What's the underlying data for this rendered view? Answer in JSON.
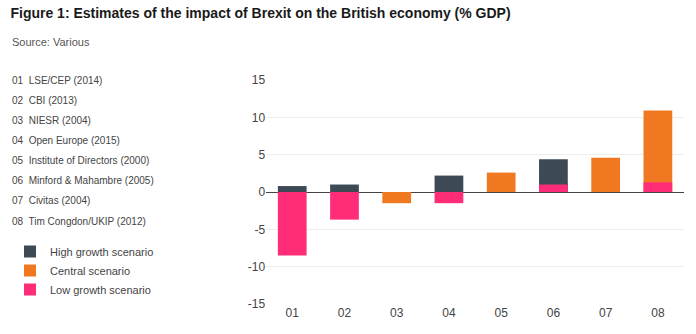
{
  "chart_data": {
    "type": "bar",
    "title": "Figure 1: Estimates of the impact of Brexit on the British economy (% GDP)",
    "subtitle": "Source: Various",
    "categories": [
      "01",
      "02",
      "03",
      "04",
      "05",
      "06",
      "07",
      "08"
    ],
    "annotations": [
      "01  LSE/CEP (2014)",
      "02  CBI (2013)",
      "03  NIESR (2004)",
      "04  Open Europe (2015)",
      "05  Institute of Directors (2000)",
      "06  Minford & Mahambre (2005)",
      "07  Civitas (2004)",
      "08  Tim Congdon/UKIP (2012)"
    ],
    "series": [
      {
        "name": "High growth scenario",
        "color": "#3d4a55",
        "values": [
          0.8,
          1.0,
          null,
          2.2,
          null,
          4.4,
          null,
          null
        ]
      },
      {
        "name": "Central scenario",
        "color": "#f07820",
        "values": [
          null,
          null,
          -1.5,
          null,
          2.6,
          1.2,
          4.6,
          10.9
        ]
      },
      {
        "name": "Low growth scenario",
        "color": "#ff2d78",
        "values": [
          -8.5,
          -3.7,
          null,
          -1.5,
          null,
          1.0,
          null,
          1.3
        ]
      }
    ],
    "ylim": [
      -15,
      15
    ],
    "yticks": [
      -15,
      -10,
      -5,
      0,
      5,
      10,
      15
    ],
    "grid": true,
    "legend": "lower left"
  }
}
